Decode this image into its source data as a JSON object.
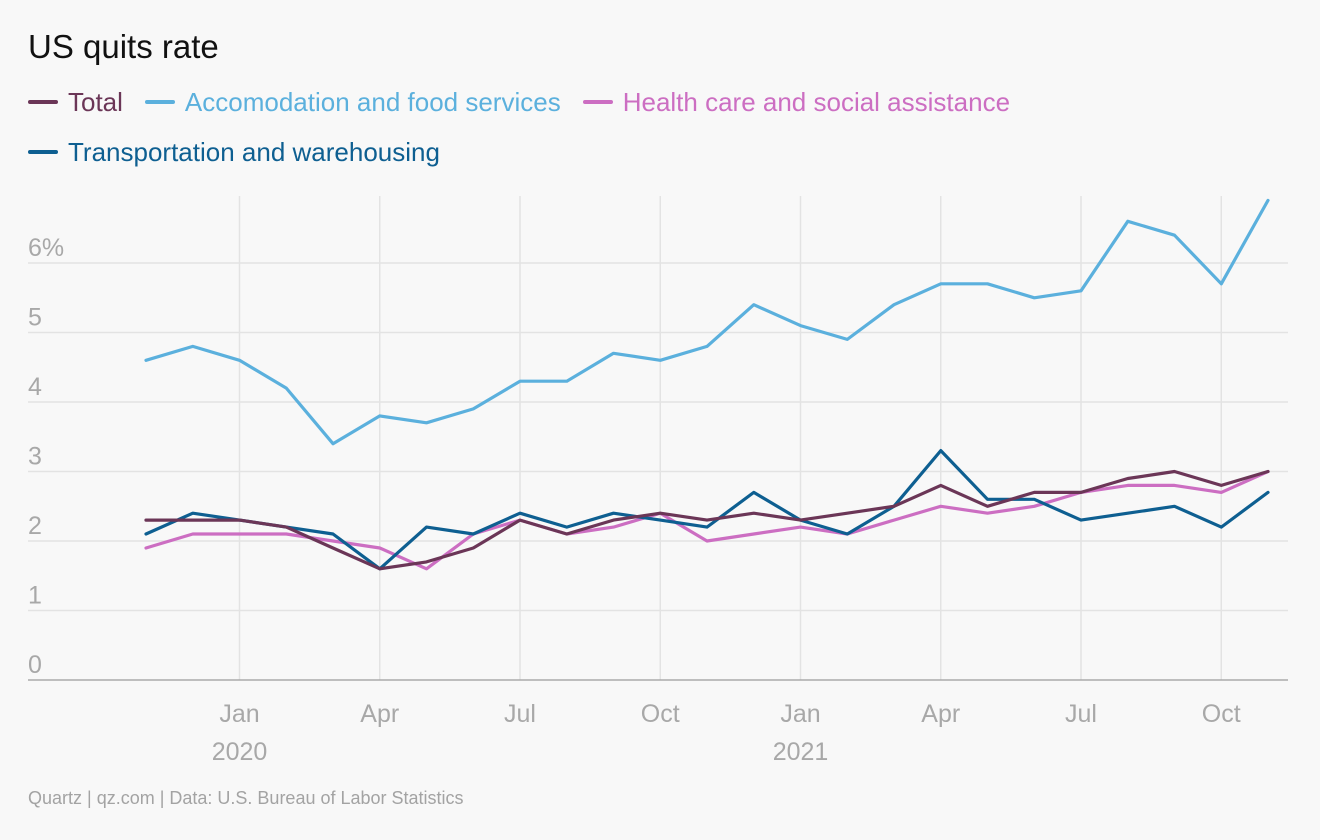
{
  "chart_data": {
    "type": "line",
    "title": "US quits rate",
    "xlabel": "",
    "ylabel": "",
    "x": [
      "2019-11",
      "2019-12",
      "2020-01",
      "2020-02",
      "2020-03",
      "2020-04",
      "2020-05",
      "2020-06",
      "2020-07",
      "2020-08",
      "2020-09",
      "2020-10",
      "2020-11",
      "2020-12",
      "2021-01",
      "2021-02",
      "2021-03",
      "2021-04",
      "2021-05",
      "2021-06",
      "2021-07",
      "2021-08",
      "2021-09",
      "2021-10",
      "2021-11"
    ],
    "ylim": [
      0,
      6.9
    ],
    "yticks": [
      0,
      1,
      2,
      3,
      4,
      5,
      6
    ],
    "ytick_labels": [
      "0",
      "1",
      "2",
      "3",
      "4",
      "5",
      "6%"
    ],
    "xticks": [
      {
        "at": "2020-01",
        "label": "Jan",
        "year": "2020"
      },
      {
        "at": "2020-04",
        "label": "Apr",
        "year": ""
      },
      {
        "at": "2020-07",
        "label": "Jul",
        "year": ""
      },
      {
        "at": "2020-10",
        "label": "Oct",
        "year": ""
      },
      {
        "at": "2021-01",
        "label": "Jan",
        "year": "2021"
      },
      {
        "at": "2021-04",
        "label": "Apr",
        "year": ""
      },
      {
        "at": "2021-07",
        "label": "Jul",
        "year": ""
      },
      {
        "at": "2021-10",
        "label": "Oct",
        "year": ""
      }
    ],
    "grid": true,
    "legend_position": "top-left",
    "series": [
      {
        "name": "Total",
        "color": "#6b3657",
        "values": [
          2.3,
          2.3,
          2.3,
          2.2,
          1.9,
          1.6,
          1.7,
          1.9,
          2.3,
          2.1,
          2.3,
          2.4,
          2.3,
          2.4,
          2.3,
          2.4,
          2.5,
          2.8,
          2.5,
          2.7,
          2.7,
          2.9,
          3.0,
          2.8,
          3.0
        ]
      },
      {
        "name": "Accomodation and food services",
        "color": "#5bb0dd",
        "values": [
          4.6,
          4.8,
          4.6,
          4.2,
          3.4,
          3.8,
          3.7,
          3.9,
          4.3,
          4.3,
          4.7,
          4.6,
          4.8,
          5.4,
          5.1,
          4.9,
          5.4,
          5.7,
          5.7,
          5.5,
          5.6,
          6.6,
          6.4,
          5.7,
          6.9
        ]
      },
      {
        "name": "Health care and social assistance",
        "color": "#cc6ec2",
        "values": [
          1.9,
          2.1,
          2.1,
          2.1,
          2.0,
          1.9,
          1.6,
          2.1,
          2.3,
          2.1,
          2.2,
          2.4,
          2.0,
          2.1,
          2.2,
          2.1,
          2.3,
          2.5,
          2.4,
          2.5,
          2.7,
          2.8,
          2.8,
          2.7,
          3.0
        ]
      },
      {
        "name": "Transportation and warehousing",
        "color": "#0e5f91",
        "values": [
          2.1,
          2.4,
          2.3,
          2.2,
          2.1,
          1.6,
          2.2,
          2.1,
          2.4,
          2.2,
          2.4,
          2.3,
          2.2,
          2.7,
          2.3,
          2.1,
          2.5,
          3.3,
          2.6,
          2.6,
          2.3,
          2.4,
          2.5,
          2.2,
          2.7
        ]
      }
    ],
    "source": "Quartz | qz.com | Data: U.S. Bureau of Labor Statistics"
  }
}
